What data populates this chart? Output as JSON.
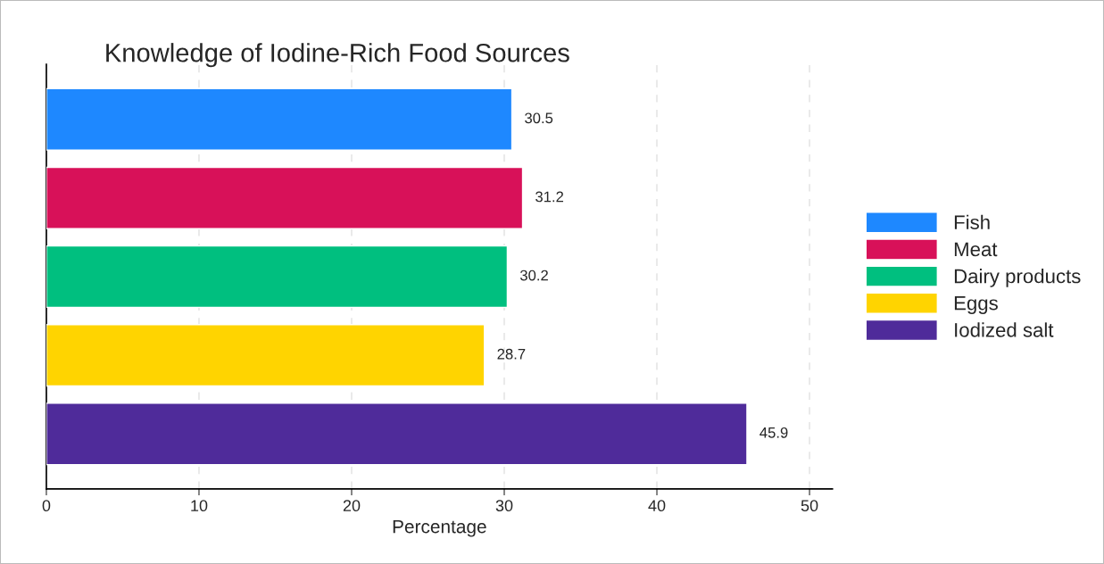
{
  "chart_data": {
    "type": "bar",
    "orientation": "horizontal",
    "title": "Knowledge of Iodine-Rich Food Sources",
    "xlabel": "Percentage",
    "categories": [
      null,
      null,
      null,
      null,
      null
    ],
    "series": [
      {
        "name": "Fish",
        "color": "#1e88ff",
        "values": [
          30.5,
          null,
          null,
          null,
          null
        ]
      },
      {
        "name": "Meat",
        "color": "#d81159",
        "values": [
          null,
          31.2,
          null,
          null,
          null
        ]
      },
      {
        "name": "Dairy products",
        "color": "#00bf7f",
        "values": [
          null,
          null,
          30.2,
          null,
          null
        ]
      },
      {
        "name": "Eggs",
        "color": "#ffd400",
        "values": [
          null,
          null,
          null,
          28.7,
          null
        ]
      },
      {
        "name": "Iodized salt",
        "color": "#4f2b9a",
        "values": [
          null,
          null,
          null,
          null,
          45.9
        ]
      }
    ],
    "xlim": [
      0,
      51.5
    ],
    "xticks": [
      0,
      10,
      20,
      30,
      40,
      50
    ],
    "tick_labels": "x",
    "grid": "x",
    "legend": "right",
    "data_labels": true
  }
}
